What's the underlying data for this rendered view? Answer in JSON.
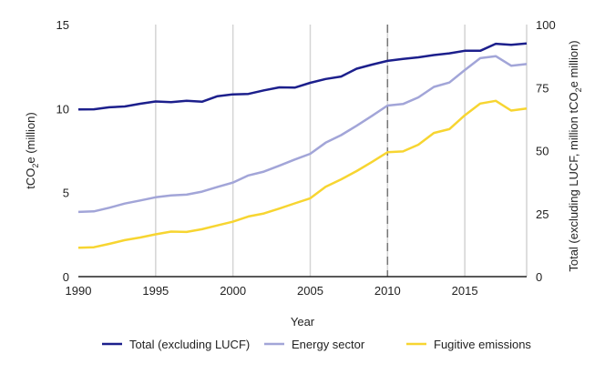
{
  "chart_data": {
    "type": "line",
    "title": "",
    "xlabel": "Year",
    "ylabel": "tCO2e (million)",
    "ylabel_right": "Total (excluding LUCF, million tCO2e million)",
    "xlim": [
      1990,
      2019
    ],
    "ylim": [
      0,
      15
    ],
    "ylim_right": [
      0,
      100
    ],
    "x_ticks": [
      1990,
      1995,
      2000,
      2005,
      2010,
      2015
    ],
    "y_ticks": [
      0,
      5,
      10,
      15
    ],
    "y_ticks_right": [
      0,
      25,
      50,
      75,
      100
    ],
    "grid": "vertical",
    "reference_line": {
      "x": 2010,
      "style": "dashed"
    },
    "legend_position": "bottom",
    "x": [
      1990,
      1991,
      1992,
      1993,
      1994,
      1995,
      1996,
      1997,
      1998,
      1999,
      2000,
      2001,
      2002,
      2003,
      2004,
      2005,
      2006,
      2007,
      2008,
      2009,
      2010,
      2011,
      2012,
      2013,
      2014,
      2015,
      2016,
      2017,
      2018,
      2019
    ],
    "series": [
      {
        "name": "Total (excluding LUCF)",
        "axis": "right",
        "color": "#1c1f8c",
        "values": [
          66.3,
          66.4,
          67.2,
          67.5,
          68.6,
          69.5,
          69.2,
          69.8,
          69.4,
          71.6,
          72.3,
          72.5,
          73.9,
          75.1,
          75.0,
          76.9,
          78.4,
          79.4,
          82.5,
          84.1,
          85.6,
          86.4,
          87.0,
          87.9,
          88.6,
          89.6,
          89.6,
          92.4,
          92.0,
          92.5
        ]
      },
      {
        "name": "Energy sector",
        "axis": "left",
        "color": "#a2a5d8",
        "values": [
          3.85,
          3.88,
          4.1,
          4.35,
          4.53,
          4.72,
          4.83,
          4.88,
          5.06,
          5.34,
          5.6,
          6.02,
          6.25,
          6.6,
          6.97,
          7.31,
          7.97,
          8.42,
          8.98,
          9.57,
          10.18,
          10.27,
          10.67,
          11.29,
          11.55,
          12.29,
          13.0,
          13.12,
          12.55,
          12.65
        ]
      },
      {
        "name": "Fugitive emissions",
        "axis": "left",
        "color": "#f7d531",
        "values": [
          1.72,
          1.75,
          1.95,
          2.17,
          2.33,
          2.52,
          2.68,
          2.66,
          2.82,
          3.05,
          3.27,
          3.58,
          3.76,
          4.05,
          4.36,
          4.66,
          5.35,
          5.79,
          6.28,
          6.83,
          7.4,
          7.45,
          7.85,
          8.55,
          8.78,
          9.6,
          10.3,
          10.46,
          9.88,
          10.0
        ]
      }
    ]
  }
}
